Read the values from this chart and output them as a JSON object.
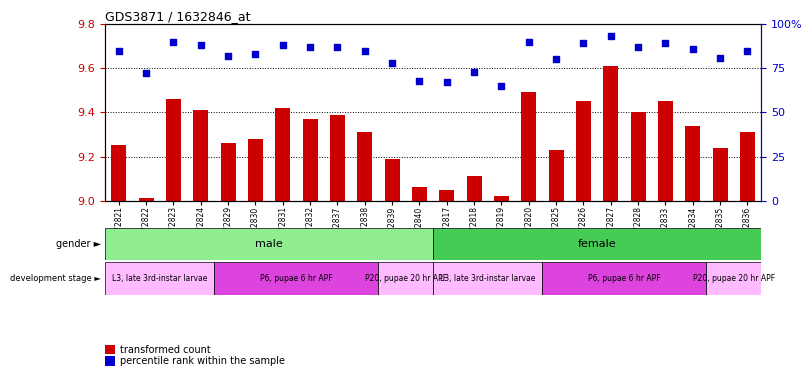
{
  "title": "GDS3871 / 1632846_at",
  "samples": [
    "GSM572821",
    "GSM572822",
    "GSM572823",
    "GSM572824",
    "GSM572829",
    "GSM572830",
    "GSM572831",
    "GSM572832",
    "GSM572837",
    "GSM572838",
    "GSM572839",
    "GSM572840",
    "GSM572817",
    "GSM572818",
    "GSM572819",
    "GSM572820",
    "GSM572825",
    "GSM572826",
    "GSM572827",
    "GSM572828",
    "GSM572833",
    "GSM572834",
    "GSM572835",
    "GSM572836"
  ],
  "transformed_count": [
    9.25,
    9.01,
    9.46,
    9.41,
    9.26,
    9.28,
    9.42,
    9.37,
    9.39,
    9.31,
    9.19,
    9.06,
    9.05,
    9.11,
    9.02,
    9.49,
    9.23,
    9.45,
    9.61,
    9.4,
    9.45,
    9.34,
    9.24,
    9.31
  ],
  "percentile_rank": [
    85,
    72,
    90,
    88,
    82,
    83,
    88,
    87,
    87,
    85,
    78,
    68,
    67,
    73,
    65,
    90,
    80,
    89,
    93,
    87,
    89,
    86,
    81,
    85
  ],
  "ylim": [
    9.0,
    9.8
  ],
  "yticks": [
    9.0,
    9.2,
    9.4,
    9.6,
    9.8
  ],
  "right_ylim": [
    0,
    100
  ],
  "right_yticks": [
    0,
    25,
    50,
    75,
    100
  ],
  "right_yticklabels": [
    "0",
    "25",
    "50",
    "75",
    "100%"
  ],
  "bar_color": "#cc0000",
  "dot_color": "#0000cc",
  "gender_groups": [
    {
      "label": "male",
      "start": 0,
      "end": 11,
      "color": "#90ee90"
    },
    {
      "label": "female",
      "start": 12,
      "end": 23,
      "color": "#44cc55"
    }
  ],
  "dev_stage_groups": [
    {
      "label": "L3, late 3rd-instar larvae",
      "start": 0,
      "end": 3,
      "color": "#ffbbff"
    },
    {
      "label": "P6, pupae 6 hr APF",
      "start": 4,
      "end": 9,
      "color": "#dd44dd"
    },
    {
      "label": "P20, pupae 20 hr APF",
      "start": 10,
      "end": 11,
      "color": "#ffbbff"
    },
    {
      "label": "L3, late 3rd-instar larvae",
      "start": 12,
      "end": 15,
      "color": "#ffbbff"
    },
    {
      "label": "P6, pupae 6 hr APF",
      "start": 16,
      "end": 21,
      "color": "#dd44dd"
    },
    {
      "label": "P20, pupae 20 hr APF",
      "start": 22,
      "end": 23,
      "color": "#ffbbff"
    }
  ],
  "grid_color": "#000000",
  "tick_color_left": "#cc0000",
  "tick_color_right": "#0000cc",
  "legend_items": [
    {
      "label": "transformed count",
      "color": "#cc0000"
    },
    {
      "label": "percentile rank within the sample",
      "color": "#0000cc"
    }
  ]
}
